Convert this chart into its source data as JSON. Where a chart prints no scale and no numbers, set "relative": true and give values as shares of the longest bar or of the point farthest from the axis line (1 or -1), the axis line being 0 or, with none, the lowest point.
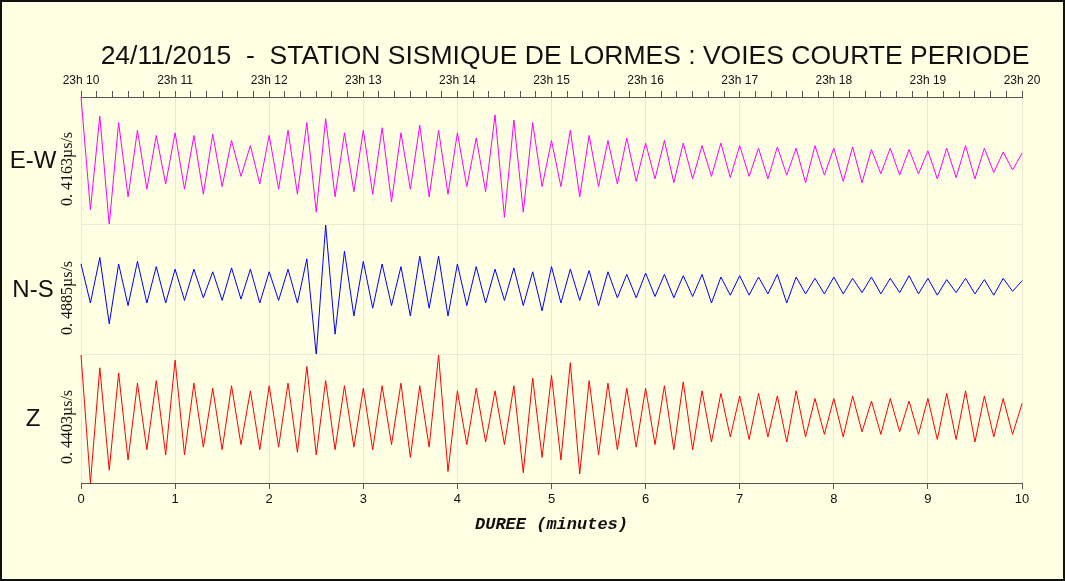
{
  "chart_data": [
    {
      "type": "line",
      "title": "24/11/2015  -  STATION SISMIQUE DE LORMES : VOIES COURTE PERIODE",
      "ylabel": "0. 4163µs/s",
      "relative": true,
      "grid": "x",
      "tick_labels": "x",
      "xlim": [
        "2015-11-24T23:10",
        "2015-11-24T23:20"
      ],
      "xticks": [
        {
          "value": "2015-11-24T23:10",
          "label": "23h 10"
        },
        {
          "value": "2015-11-24T23:10:10",
          "label": null
        },
        {
          "value": "2015-11-24T23:10:20",
          "label": null
        },
        {
          "value": "2015-11-24T23:10:30",
          "label": null
        },
        {
          "value": "2015-11-24T23:10:40",
          "label": null
        },
        {
          "value": "2015-11-24T23:10:50",
          "label": null
        },
        {
          "value": "2015-11-24T23:11",
          "label": "23h 11"
        },
        {
          "value": "2015-11-24T23:11:10",
          "label": null
        },
        {
          "value": "2015-11-24T23:11:20",
          "label": null
        },
        {
          "value": "2015-11-24T23:11:30",
          "label": null
        },
        {
          "value": "2015-11-24T23:11:40",
          "label": null
        },
        {
          "value": "2015-11-24T23:11:50",
          "label": null
        },
        {
          "value": "2015-11-24T23:12",
          "label": "23h 12"
        },
        {
          "value": "2015-11-24T23:12:10",
          "label": null
        },
        {
          "value": "2015-11-24T23:12:20",
          "label": null
        },
        {
          "value": "2015-11-24T23:12:30",
          "label": null
        },
        {
          "value": "2015-11-24T23:12:40",
          "label": null
        },
        {
          "value": "2015-11-24T23:12:50",
          "label": null
        },
        {
          "value": "2015-11-24T23:13",
          "label": "23h 13"
        },
        {
          "value": "2015-11-24T23:13:10",
          "label": null
        },
        {
          "value": "2015-11-24T23:13:20",
          "label": null
        },
        {
          "value": "2015-11-24T23:13:30",
          "label": null
        },
        {
          "value": "2015-11-24T23:13:40",
          "label": null
        },
        {
          "value": "2015-11-24T23:13:50",
          "label": null
        },
        {
          "value": "2015-11-24T23:14",
          "label": "23h 14"
        },
        {
          "value": "2015-11-24T23:14:10",
          "label": null
        },
        {
          "value": "2015-11-24T23:14:20",
          "label": null
        },
        {
          "value": "2015-11-24T23:14:30",
          "label": null
        },
        {
          "value": "2015-11-24T23:14:40",
          "label": null
        },
        {
          "value": "2015-11-24T23:14:50",
          "label": null
        },
        {
          "value": "2015-11-24T23:15",
          "label": "23h 15"
        },
        {
          "value": "2015-11-24T23:15:10",
          "label": null
        },
        {
          "value": "2015-11-24T23:15:20",
          "label": null
        },
        {
          "value": "2015-11-24T23:15:30",
          "label": null
        },
        {
          "value": "2015-11-24T23:15:40",
          "label": null
        },
        {
          "value": "2015-11-24T23:15:50",
          "label": null
        },
        {
          "value": "2015-11-24T23:16",
          "label": "23h 16"
        },
        {
          "value": "2015-11-24T23:16:10",
          "label": null
        },
        {
          "value": "2015-11-24T23:16:20",
          "label": null
        },
        {
          "value": "2015-11-24T23:16:30",
          "label": null
        },
        {
          "value": "2015-11-24T23:16:40",
          "label": null
        },
        {
          "value": "2015-11-24T23:16:50",
          "label": null
        },
        {
          "value": "2015-11-24T23:17",
          "label": "23h 17"
        },
        {
          "value": "2015-11-24T23:17:10",
          "label": null
        },
        {
          "value": "2015-11-24T23:17:20",
          "label": null
        },
        {
          "value": "2015-11-24T23:17:30",
          "label": null
        },
        {
          "value": "2015-11-24T23:17:40",
          "label": null
        },
        {
          "value": "2015-11-24T23:17:50",
          "label": null
        },
        {
          "value": "2015-11-24T23:18",
          "label": "23h 18"
        },
        {
          "value": "2015-11-24T23:18:10",
          "label": null
        },
        {
          "value": "2015-11-24T23:18:20",
          "label": null
        },
        {
          "value": "2015-11-24T23:18:30",
          "label": null
        },
        {
          "value": "2015-11-24T23:18:40",
          "label": null
        },
        {
          "value": "2015-11-24T23:18:50",
          "label": null
        },
        {
          "value": "2015-11-24T23:19",
          "label": "23h 19"
        },
        {
          "value": "2015-11-24T23:19:10",
          "label": null
        },
        {
          "value": "2015-11-24T23:19:20",
          "label": null
        },
        {
          "value": "2015-11-24T23:19:30",
          "label": null
        },
        {
          "value": "2015-11-24T23:19:40",
          "label": null
        },
        {
          "value": "2015-11-24T23:19:50",
          "label": null
        },
        {
          "value": "2015-11-24T23:20",
          "label": "23h 20"
        }
      ],
      "x": [
        "2015-11-24T23:10:00",
        "2015-11-24T23:10:06",
        "2015-11-24T23:10:12",
        "2015-11-24T23:10:18",
        "2015-11-24T23:10:24",
        "2015-11-24T23:10:30",
        "2015-11-24T23:10:36",
        "2015-11-24T23:10:42",
        "2015-11-24T23:10:48",
        "2015-11-24T23:10:54",
        "2015-11-24T23:11:00",
        "2015-11-24T23:11:06",
        "2015-11-24T23:11:12",
        "2015-11-24T23:11:18",
        "2015-11-24T23:11:24",
        "2015-11-24T23:11:30",
        "2015-11-24T23:11:36",
        "2015-11-24T23:11:42",
        "2015-11-24T23:11:48",
        "2015-11-24T23:11:54",
        "2015-11-24T23:12:00",
        "2015-11-24T23:12:06",
        "2015-11-24T23:12:12",
        "2015-11-24T23:12:18",
        "2015-11-24T23:12:24",
        "2015-11-24T23:12:30",
        "2015-11-24T23:12:36",
        "2015-11-24T23:12:42",
        "2015-11-24T23:12:48",
        "2015-11-24T23:12:54",
        "2015-11-24T23:13:00",
        "2015-11-24T23:13:06",
        "2015-11-24T23:13:12",
        "2015-11-24T23:13:18",
        "2015-11-24T23:13:24",
        "2015-11-24T23:13:30",
        "2015-11-24T23:13:36",
        "2015-11-24T23:13:42",
        "2015-11-24T23:13:48",
        "2015-11-24T23:13:54",
        "2015-11-24T23:14:00",
        "2015-11-24T23:14:06",
        "2015-11-24T23:14:12",
        "2015-11-24T23:14:18",
        "2015-11-24T23:14:24",
        "2015-11-24T23:14:30",
        "2015-11-24T23:14:36",
        "2015-11-24T23:14:42",
        "2015-11-24T23:14:48",
        "2015-11-24T23:14:54",
        "2015-11-24T23:15:00",
        "2015-11-24T23:15:06",
        "2015-11-24T23:15:12",
        "2015-11-24T23:15:18",
        "2015-11-24T23:15:24",
        "2015-11-24T23:15:30",
        "2015-11-24T23:15:36",
        "2015-11-24T23:15:42",
        "2015-11-24T23:15:48",
        "2015-11-24T23:15:54",
        "2015-11-24T23:16:00",
        "2015-11-24T23:16:06",
        "2015-11-24T23:16:12",
        "2015-11-24T23:16:18",
        "2015-11-24T23:16:24",
        "2015-11-24T23:16:30",
        "2015-11-24T23:16:36",
        "2015-11-24T23:16:42",
        "2015-11-24T23:16:48",
        "2015-11-24T23:16:54",
        "2015-11-24T23:17:00",
        "2015-11-24T23:17:06",
        "2015-11-24T23:17:12",
        "2015-11-24T23:17:18",
        "2015-11-24T23:17:24",
        "2015-11-24T23:17:30",
        "2015-11-24T23:17:36",
        "2015-11-24T23:17:42",
        "2015-11-24T23:17:48",
        "2015-11-24T23:17:54",
        "2015-11-24T23:18:00",
        "2015-11-24T23:18:06",
        "2015-11-24T23:18:12",
        "2015-11-24T23:18:18",
        "2015-11-24T23:18:24",
        "2015-11-24T23:18:30",
        "2015-11-24T23:18:36",
        "2015-11-24T23:18:42",
        "2015-11-24T23:18:48",
        "2015-11-24T23:18:54",
        "2015-11-24T23:19:00",
        "2015-11-24T23:19:06",
        "2015-11-24T23:19:12",
        "2015-11-24T23:19:18",
        "2015-11-24T23:19:24",
        "2015-11-24T23:19:30",
        "2015-11-24T23:19:36",
        "2015-11-24T23:19:42",
        "2015-11-24T23:19:48",
        "2015-11-24T23:19:54",
        "2015-11-24T23:20:00"
      ],
      "series": [
        {
          "name": "E-W",
          "color": "#ff00ff",
          "values": [
            1.0,
            0.12,
            0.85,
            0.0,
            0.8,
            0.22,
            0.74,
            0.28,
            0.7,
            0.32,
            0.72,
            0.28,
            0.7,
            0.24,
            0.71,
            0.3,
            0.66,
            0.38,
            0.62,
            0.32,
            0.7,
            0.28,
            0.74,
            0.24,
            0.8,
            0.1,
            0.83,
            0.22,
            0.72,
            0.26,
            0.74,
            0.24,
            0.76,
            0.18,
            0.72,
            0.28,
            0.78,
            0.22,
            0.74,
            0.24,
            0.72,
            0.3,
            0.68,
            0.26,
            0.86,
            0.06,
            0.82,
            0.1,
            0.8,
            0.3,
            0.66,
            0.3,
            0.74,
            0.22,
            0.7,
            0.3,
            0.66,
            0.32,
            0.68,
            0.34,
            0.64,
            0.36,
            0.66,
            0.33,
            0.64,
            0.36,
            0.62,
            0.38,
            0.64,
            0.37,
            0.62,
            0.38,
            0.6,
            0.36,
            0.61,
            0.39,
            0.6,
            0.33,
            0.62,
            0.39,
            0.6,
            0.34,
            0.61,
            0.33,
            0.59,
            0.4,
            0.6,
            0.39,
            0.59,
            0.4,
            0.58,
            0.36,
            0.6,
            0.37,
            0.62,
            0.36,
            0.6,
            0.41,
            0.57,
            0.43,
            0.56
          ]
        }
      ]
    },
    {
      "type": "line",
      "ylabel": "0. 4885µs/s",
      "relative": true,
      "grid": "x",
      "tick_labels": false,
      "xlim": [
        0,
        10
      ],
      "xticks": [
        0,
        1,
        2,
        3,
        4,
        5,
        6,
        7,
        8,
        9,
        10
      ],
      "x": [
        0,
        0.1,
        0.2,
        0.3,
        0.4,
        0.5,
        0.6,
        0.7,
        0.8,
        0.9,
        1,
        1.1,
        1.2,
        1.3,
        1.4,
        1.5,
        1.6,
        1.7,
        1.8,
        1.9,
        2,
        2.1,
        2.2,
        2.3,
        2.4,
        2.5,
        2.6,
        2.7,
        2.8,
        2.9,
        3,
        3.1,
        3.2,
        3.3,
        3.4,
        3.5,
        3.6,
        3.7,
        3.8,
        3.9,
        4,
        4.1,
        4.2,
        4.3,
        4.4,
        4.5,
        4.6,
        4.7,
        4.8,
        4.9,
        5,
        5.1,
        5.2,
        5.3,
        5.4,
        5.5,
        5.6,
        5.7,
        5.8,
        5.9,
        6,
        6.1,
        6.2,
        6.3,
        6.4,
        6.5,
        6.6,
        6.7,
        6.8,
        6.9,
        7,
        7.1,
        7.2,
        7.3,
        7.4,
        7.5,
        7.6,
        7.7,
        7.8,
        7.9,
        8,
        8.1,
        8.2,
        8.3,
        8.4,
        8.5,
        8.6,
        8.7,
        8.8,
        8.9,
        9,
        9.1,
        9.2,
        9.3,
        9.4,
        9.5,
        9.6,
        9.7,
        9.8,
        9.9,
        10
      ],
      "series": [
        {
          "name": "N-S",
          "color": "#0000ff",
          "values": [
            0.7,
            0.4,
            0.75,
            0.24,
            0.7,
            0.38,
            0.72,
            0.4,
            0.68,
            0.4,
            0.66,
            0.42,
            0.66,
            0.44,
            0.64,
            0.42,
            0.67,
            0.43,
            0.66,
            0.4,
            0.64,
            0.42,
            0.66,
            0.4,
            0.74,
            0.0,
            1.0,
            0.16,
            0.8,
            0.3,
            0.72,
            0.36,
            0.7,
            0.38,
            0.68,
            0.3,
            0.76,
            0.36,
            0.76,
            0.3,
            0.7,
            0.38,
            0.68,
            0.4,
            0.66,
            0.42,
            0.67,
            0.38,
            0.64,
            0.34,
            0.68,
            0.4,
            0.66,
            0.42,
            0.65,
            0.38,
            0.64,
            0.44,
            0.62,
            0.44,
            0.63,
            0.45,
            0.62,
            0.44,
            0.61,
            0.45,
            0.62,
            0.4,
            0.6,
            0.46,
            0.61,
            0.46,
            0.6,
            0.47,
            0.62,
            0.4,
            0.6,
            0.47,
            0.59,
            0.47,
            0.6,
            0.47,
            0.59,
            0.48,
            0.6,
            0.47,
            0.59,
            0.48,
            0.61,
            0.47,
            0.59,
            0.46,
            0.58,
            0.48,
            0.59,
            0.47,
            0.58,
            0.46,
            0.59,
            0.49,
            0.57
          ]
        }
      ]
    },
    {
      "type": "line",
      "ylabel": "0. 4403µs/s",
      "xlabel": "DUREE (minutes)",
      "relative": true,
      "grid": "x",
      "tick_labels": "x",
      "xlim": [
        0,
        10
      ],
      "xticks": [
        0,
        1,
        2,
        3,
        4,
        5,
        6,
        7,
        8,
        9,
        10
      ],
      "x": [
        0,
        0.1,
        0.2,
        0.3,
        0.4,
        0.5,
        0.6,
        0.7,
        0.8,
        0.9,
        1,
        1.1,
        1.2,
        1.3,
        1.4,
        1.5,
        1.6,
        1.7,
        1.8,
        1.9,
        2,
        2.1,
        2.2,
        2.3,
        2.4,
        2.5,
        2.6,
        2.7,
        2.8,
        2.9,
        3,
        3.1,
        3.2,
        3.3,
        3.4,
        3.5,
        3.6,
        3.7,
        3.8,
        3.9,
        4,
        4.1,
        4.2,
        4.3,
        4.4,
        4.5,
        4.6,
        4.7,
        4.8,
        4.9,
        5,
        5.1,
        5.2,
        5.3,
        5.4,
        5.5,
        5.6,
        5.7,
        5.8,
        5.9,
        6,
        6.1,
        6.2,
        6.3,
        6.4,
        6.5,
        6.6,
        6.7,
        6.8,
        6.9,
        7,
        7.1,
        7.2,
        7.3,
        7.4,
        7.5,
        7.6,
        7.7,
        7.8,
        7.9,
        8,
        8.1,
        8.2,
        8.3,
        8.4,
        8.5,
        8.6,
        8.7,
        8.8,
        8.9,
        9,
        9.1,
        9.2,
        9.3,
        9.4,
        9.5,
        9.6,
        9.7,
        9.8,
        9.9,
        10
      ],
      "series": [
        {
          "name": "Z",
          "color": "#ff0000",
          "values": [
            1.0,
            0.0,
            0.9,
            0.1,
            0.86,
            0.18,
            0.78,
            0.26,
            0.8,
            0.22,
            0.96,
            0.22,
            0.78,
            0.28,
            0.74,
            0.26,
            0.76,
            0.3,
            0.72,
            0.26,
            0.76,
            0.28,
            0.78,
            0.24,
            0.91,
            0.22,
            0.8,
            0.26,
            0.76,
            0.28,
            0.74,
            0.26,
            0.76,
            0.3,
            0.78,
            0.2,
            0.76,
            0.28,
            1.0,
            0.09,
            0.72,
            0.3,
            0.74,
            0.32,
            0.72,
            0.3,
            0.76,
            0.08,
            0.82,
            0.2,
            0.84,
            0.18,
            0.94,
            0.07,
            0.8,
            0.22,
            0.78,
            0.26,
            0.74,
            0.28,
            0.74,
            0.3,
            0.76,
            0.26,
            0.79,
            0.26,
            0.72,
            0.32,
            0.7,
            0.36,
            0.68,
            0.34,
            0.7,
            0.36,
            0.68,
            0.32,
            0.72,
            0.36,
            0.66,
            0.38,
            0.66,
            0.36,
            0.68,
            0.4,
            0.64,
            0.38,
            0.66,
            0.4,
            0.64,
            0.38,
            0.66,
            0.34,
            0.7,
            0.34,
            0.72,
            0.32,
            0.68,
            0.36,
            0.66,
            0.38,
            0.62
          ]
        }
      ]
    }
  ]
}
